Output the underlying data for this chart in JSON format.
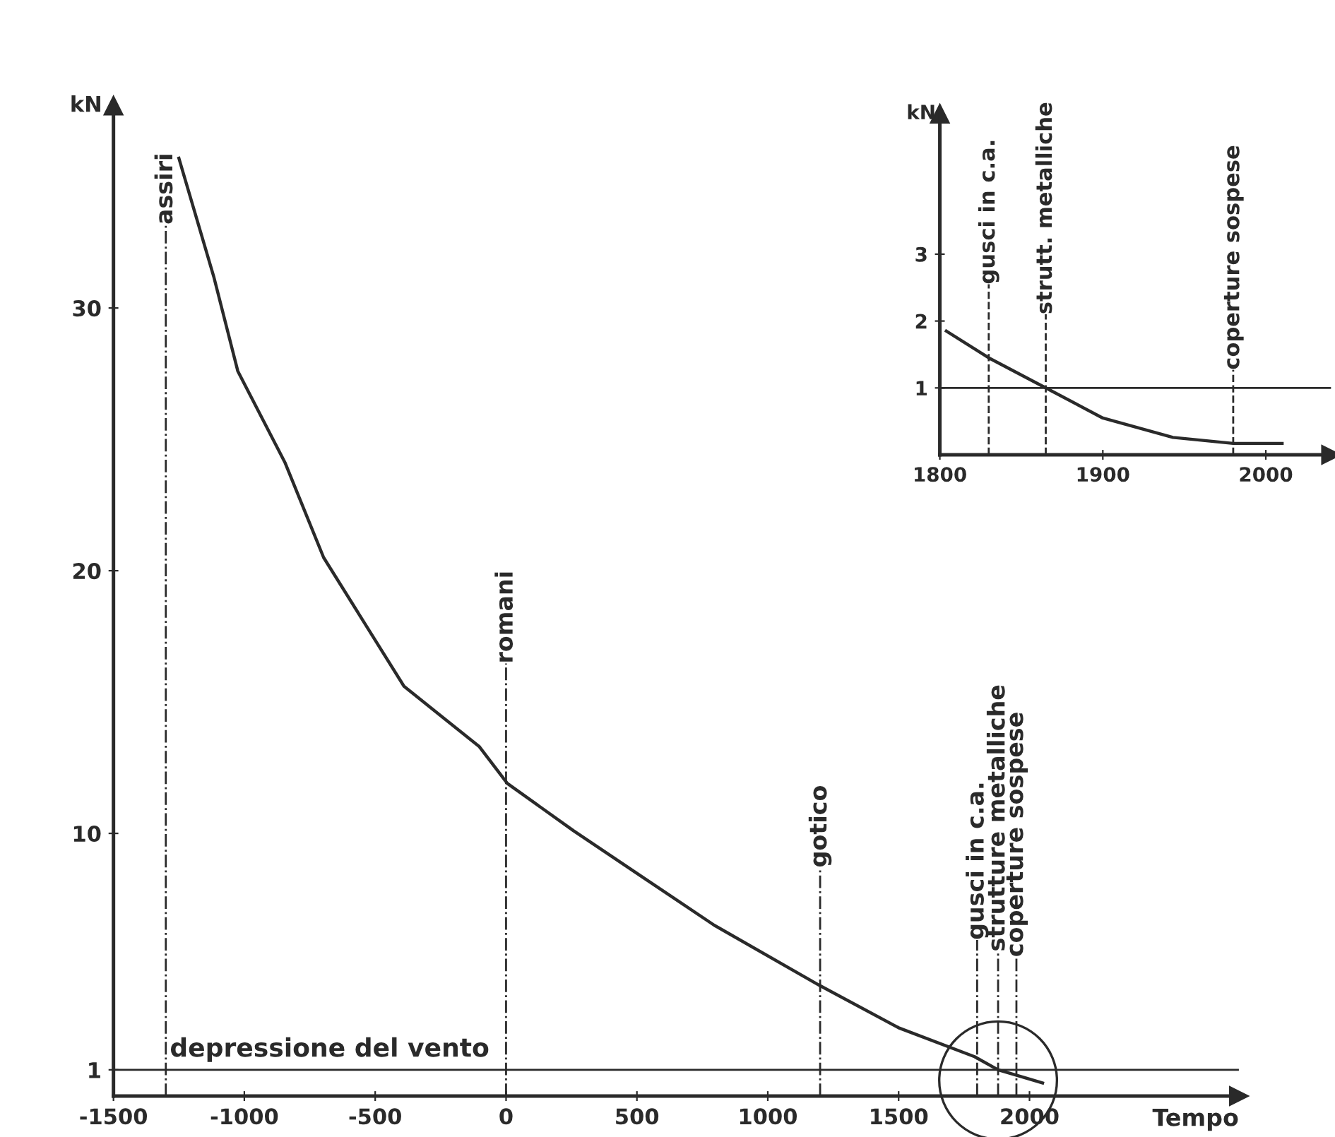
{
  "chart_data": [
    {
      "type": "line",
      "xlabel": "Tempo",
      "ylabel": "kN",
      "x": [
        -1250,
        -1117,
        -1025,
        -844,
        -697,
        -390,
        -102,
        5,
        258,
        527,
        796,
        1200,
        1500,
        1790,
        1880,
        2050
      ],
      "series": [
        {
          "color": "#2a2a2a",
          "values": [
            35.7,
            31.2,
            27.6,
            24.1,
            20.5,
            15.6,
            13.3,
            11.9,
            10.1,
            8.3,
            6.5,
            4.2,
            2.6,
            1.5,
            1.0,
            0.5
          ]
        }
      ],
      "xlim": [
        -1500,
        2800
      ],
      "ylim": [
        0,
        37.7
      ],
      "xticks": [
        -1500,
        -1000,
        -500,
        0,
        500,
        1000,
        1500,
        2000
      ],
      "yticks": [
        1,
        10,
        20,
        30
      ],
      "ref_lines": [
        {
          "axis": "y",
          "value": 1,
          "label": "depressione del vento",
          "line_style": "solid"
        },
        {
          "axis": "x",
          "value": -1300,
          "label": "assiri",
          "line_style": "dashdot"
        },
        {
          "axis": "x",
          "value": 0,
          "label": "romani",
          "line_style": "dashdot"
        },
        {
          "axis": "x",
          "value": 1200,
          "label": "gotico",
          "line_style": "dashdot"
        },
        {
          "axis": "x",
          "value": 1800,
          "label": "gusci in c.a.",
          "line_style": "dashdot"
        },
        {
          "axis": "x",
          "value": 1880,
          "label": "strutture metalliche",
          "line_style": "dashdot"
        },
        {
          "axis": "x",
          "value": 1950,
          "label": "coperture sospese",
          "line_style": "dashdot"
        }
      ],
      "grid": false,
      "marker": "none",
      "line_style": "solid"
    },
    {
      "type": "line",
      "ylabel": "kN",
      "x": [
        1804,
        1830,
        1865,
        1900,
        1943,
        1980,
        2010
      ],
      "series": [
        {
          "color": "#2a2a2a",
          "values": [
            1.85,
            1.45,
            1.0,
            0.55,
            0.26,
            0.17,
            0.17
          ]
        }
      ],
      "xlim": [
        1800,
        2040
      ],
      "ylim": [
        0,
        5.1
      ],
      "xticks": [
        1800,
        1900,
        2000
      ],
      "yticks": [
        1,
        2,
        3
      ],
      "ref_lines": [
        {
          "axis": "y",
          "value": 1,
          "line_style": "solid"
        },
        {
          "axis": "x",
          "value": 1830,
          "label": "gusci in c.a.",
          "line_style": "dashed"
        },
        {
          "axis": "x",
          "value": 1865,
          "label": "strutt. metalliche",
          "line_style": "dashed"
        },
        {
          "axis": "x",
          "value": 1980,
          "label": "coperture sospese",
          "line_style": "dashed"
        }
      ],
      "grid": false,
      "marker": "none",
      "line_style": "solid"
    }
  ]
}
